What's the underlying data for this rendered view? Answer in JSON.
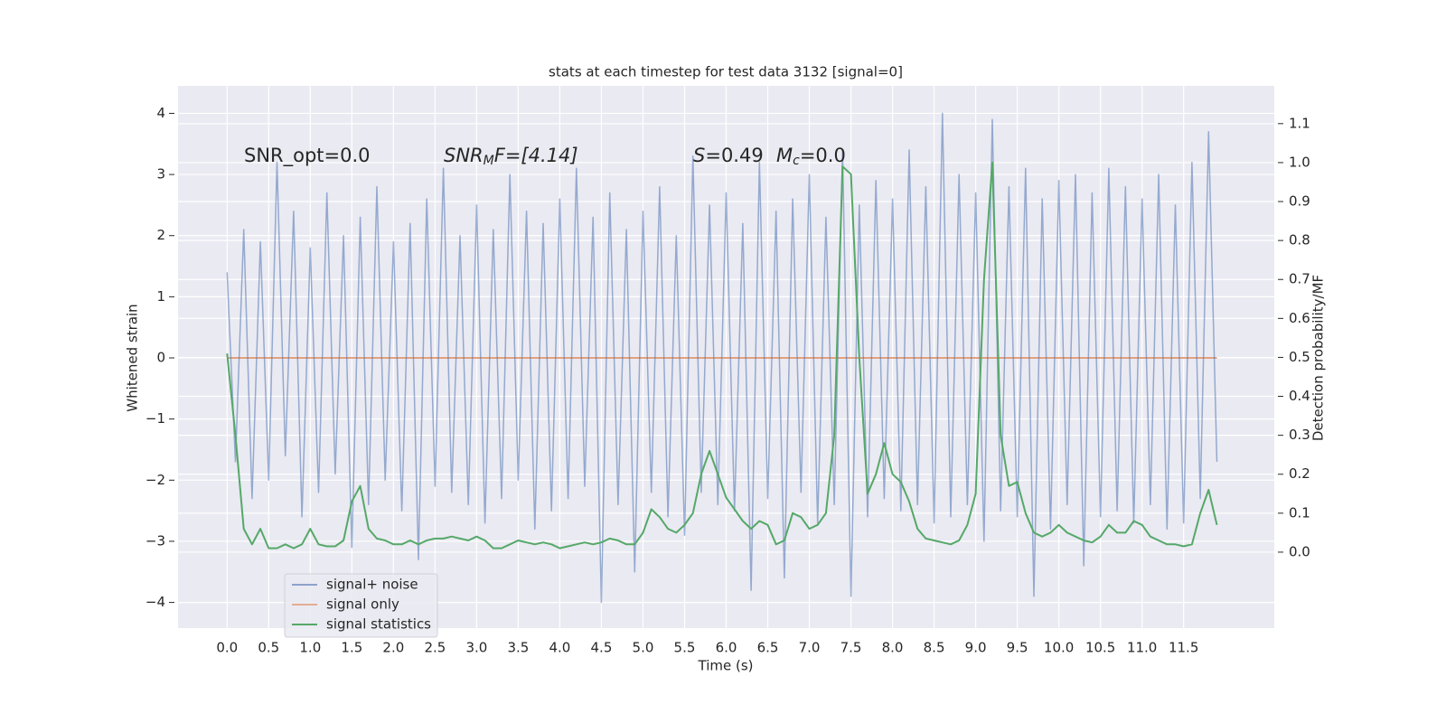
{
  "chart_data": {
    "type": "line",
    "title": "stats at each timestep for test data 3132 [signal=0]",
    "xlabel": "Time (s)",
    "ylabel": "Whitened strain",
    "y2label": "Detection probability/MF",
    "annotations": [
      {
        "parts": [
          "SNR_opt=0.0"
        ]
      },
      {
        "parts": [
          "SNR",
          "M",
          "F=[4.14]"
        ]
      },
      {
        "parts": [
          "S",
          "=0.49"
        ]
      },
      {
        "parts": [
          "M",
          "c",
          "=0.0"
        ]
      }
    ],
    "x": [
      0,
      0.1,
      0.2,
      0.3,
      0.4,
      0.5,
      0.6,
      0.7,
      0.8,
      0.9,
      1,
      1.1,
      1.2,
      1.3,
      1.4,
      1.5,
      1.6,
      1.7,
      1.8,
      1.9,
      2,
      2.1,
      2.2,
      2.3,
      2.4,
      2.5,
      2.6,
      2.7,
      2.8,
      2.9,
      3,
      3.1,
      3.2,
      3.3,
      3.4,
      3.5,
      3.6,
      3.7,
      3.8,
      3.9,
      4,
      4.1,
      4.2,
      4.3,
      4.4,
      4.5,
      4.6,
      4.7,
      4.8,
      4.9,
      5,
      5.1,
      5.2,
      5.3,
      5.4,
      5.5,
      5.6,
      5.7,
      5.8,
      5.9,
      6,
      6.1,
      6.2,
      6.3,
      6.4,
      6.5,
      6.6,
      6.7,
      6.8,
      6.9,
      7,
      7.1,
      7.2,
      7.3,
      7.4,
      7.5,
      7.6,
      7.7,
      7.8,
      7.9,
      8,
      8.1,
      8.2,
      8.3,
      8.4,
      8.5,
      8.6,
      8.7,
      8.8,
      8.9,
      9,
      9.1,
      9.2,
      9.3,
      9.4,
      9.5,
      9.6,
      9.7,
      9.8,
      9.9,
      10,
      10.1,
      10.2,
      10.3,
      10.4,
      10.5,
      10.6,
      10.7,
      10.8,
      10.9,
      11,
      11.1,
      11.2,
      11.3,
      11.4,
      11.5,
      11.6,
      11.7,
      11.8,
      11.9
    ],
    "series": [
      {
        "name": "signal+ noise",
        "color": "#4c72b0",
        "values": [
          1.4,
          -1.7,
          2.1,
          -2.3,
          1.9,
          -2.0,
          3.2,
          -1.6,
          2.4,
          -2.6,
          1.8,
          -2.2,
          2.7,
          -1.9,
          2.0,
          -3.1,
          2.3,
          -2.4,
          2.8,
          -2.0,
          1.9,
          -2.5,
          2.2,
          -3.3,
          2.6,
          -2.1,
          3.1,
          -2.2,
          2.0,
          -2.4,
          2.5,
          -2.7,
          2.1,
          -2.3,
          3.0,
          -2.0,
          2.4,
          -2.8,
          2.2,
          -2.5,
          2.6,
          -2.3,
          3.1,
          -2.1,
          2.3,
          -4.0,
          2.7,
          -2.4,
          2.1,
          -3.5,
          2.4,
          -2.2,
          2.8,
          -2.6,
          2.0,
          -2.9,
          3.3,
          -2.2,
          2.5,
          -2.4,
          2.7,
          -2.5,
          2.2,
          -3.8,
          3.2,
          -2.3,
          2.4,
          -3.6,
          2.6,
          -2.2,
          3.0,
          -2.7,
          2.3,
          -2.4,
          3.4,
          -3.9,
          2.5,
          -2.6,
          2.9,
          -2.3,
          2.6,
          -2.5,
          3.4,
          -2.4,
          2.8,
          -2.7,
          4.0,
          -2.6,
          3.0,
          -2.4,
          2.7,
          -3.0,
          3.9,
          -2.5,
          2.8,
          -2.6,
          3.1,
          -3.9,
          2.6,
          -2.8,
          2.9,
          -2.4,
          3.0,
          -3.4,
          2.7,
          -2.6,
          3.1,
          -2.5,
          2.8,
          -2.7,
          2.6,
          -2.4,
          3.0,
          -2.8,
          2.5,
          -2.7,
          3.2,
          -2.3,
          3.7,
          -1.7
        ]
      },
      {
        "name": "signal only",
        "color": "#dd8452",
        "values": [
          0,
          0,
          0,
          0,
          0,
          0,
          0,
          0,
          0,
          0,
          0,
          0,
          0,
          0,
          0,
          0,
          0,
          0,
          0,
          0,
          0,
          0,
          0,
          0,
          0,
          0,
          0,
          0,
          0,
          0,
          0,
          0,
          0,
          0,
          0,
          0,
          0,
          0,
          0,
          0,
          0,
          0,
          0,
          0,
          0,
          0,
          0,
          0,
          0,
          0,
          0,
          0,
          0,
          0,
          0,
          0,
          0,
          0,
          0,
          0,
          0,
          0,
          0,
          0,
          0,
          0,
          0,
          0,
          0,
          0,
          0,
          0,
          0,
          0,
          0,
          0,
          0,
          0,
          0,
          0,
          0,
          0,
          0,
          0,
          0,
          0,
          0,
          0,
          0,
          0,
          0,
          0,
          0,
          0,
          0,
          0,
          0,
          0,
          0,
          0,
          0,
          0,
          0,
          0,
          0,
          0,
          0,
          0,
          0,
          0,
          0,
          0,
          0,
          0,
          0,
          0,
          0,
          0,
          0,
          0
        ]
      },
      {
        "name": "signal statistics",
        "color": "#55a868",
        "axis": "y2",
        "values": [
          0.51,
          0.3,
          0.06,
          0.02,
          0.06,
          0.01,
          0.01,
          0.02,
          0.01,
          0.02,
          0.06,
          0.02,
          0.015,
          0.015,
          0.03,
          0.13,
          0.17,
          0.06,
          0.035,
          0.03,
          0.02,
          0.02,
          0.03,
          0.02,
          0.03,
          0.035,
          0.035,
          0.04,
          0.035,
          0.03,
          0.04,
          0.03,
          0.01,
          0.01,
          0.02,
          0.03,
          0.025,
          0.02,
          0.025,
          0.02,
          0.01,
          0.015,
          0.02,
          0.025,
          0.02,
          0.025,
          0.035,
          0.03,
          0.02,
          0.02,
          0.05,
          0.11,
          0.09,
          0.06,
          0.05,
          0.07,
          0.1,
          0.2,
          0.26,
          0.2,
          0.14,
          0.11,
          0.08,
          0.06,
          0.08,
          0.07,
          0.02,
          0.03,
          0.1,
          0.09,
          0.06,
          0.07,
          0.1,
          0.3,
          0.99,
          0.97,
          0.5,
          0.15,
          0.2,
          0.28,
          0.2,
          0.18,
          0.13,
          0.06,
          0.035,
          0.03,
          0.025,
          0.02,
          0.03,
          0.07,
          0.15,
          0.7,
          1.0,
          0.3,
          0.17,
          0.18,
          0.1,
          0.05,
          0.04,
          0.05,
          0.07,
          0.05,
          0.04,
          0.03,
          0.025,
          0.04,
          0.07,
          0.05,
          0.05,
          0.08,
          0.07,
          0.04,
          0.03,
          0.02,
          0.02,
          0.015,
          0.02,
          0.1,
          0.16,
          0.07
        ]
      }
    ],
    "xlim": [
      -0.59,
      12.59
    ],
    "xticks": [
      {
        "value": 0,
        "label": "0.0"
      },
      0.5,
      {
        "value": 1,
        "label": "1.0"
      },
      1.5,
      {
        "value": 2,
        "label": "2.0"
      },
      2.5,
      {
        "value": 3,
        "label": "3.0"
      },
      3.5,
      {
        "value": 4,
        "label": "4.0"
      },
      4.5,
      {
        "value": 5,
        "label": "5.0"
      },
      5.5,
      {
        "value": 6,
        "label": "6.0"
      },
      6.5,
      {
        "value": 7,
        "label": "7.0"
      },
      7.5,
      {
        "value": 8,
        "label": "8.0"
      },
      8.5,
      {
        "value": 9,
        "label": "9.0"
      },
      9.5,
      {
        "value": 10,
        "label": "10.0"
      },
      10.5,
      {
        "value": 11,
        "label": "11.0"
      },
      11.5
    ],
    "ylim": [
      -4.42,
      4.45
    ],
    "yticks": [
      {
        "value": -4,
        "label": "−4"
      },
      {
        "value": -3,
        "label": "−3"
      },
      {
        "value": -2,
        "label": "−2"
      },
      {
        "value": -1,
        "label": "−1"
      },
      0,
      1,
      2,
      3,
      4
    ],
    "y2lim": [
      -0.195,
      1.197
    ],
    "y2ticks": [
      {
        "value": 0,
        "label": "0.0"
      },
      0.1,
      0.2,
      0.3,
      0.4,
      0.5,
      0.6,
      0.7,
      0.8,
      0.9,
      {
        "value": 1,
        "label": "1.0"
      },
      1.1
    ],
    "grid": true,
    "legend": "lower left"
  }
}
